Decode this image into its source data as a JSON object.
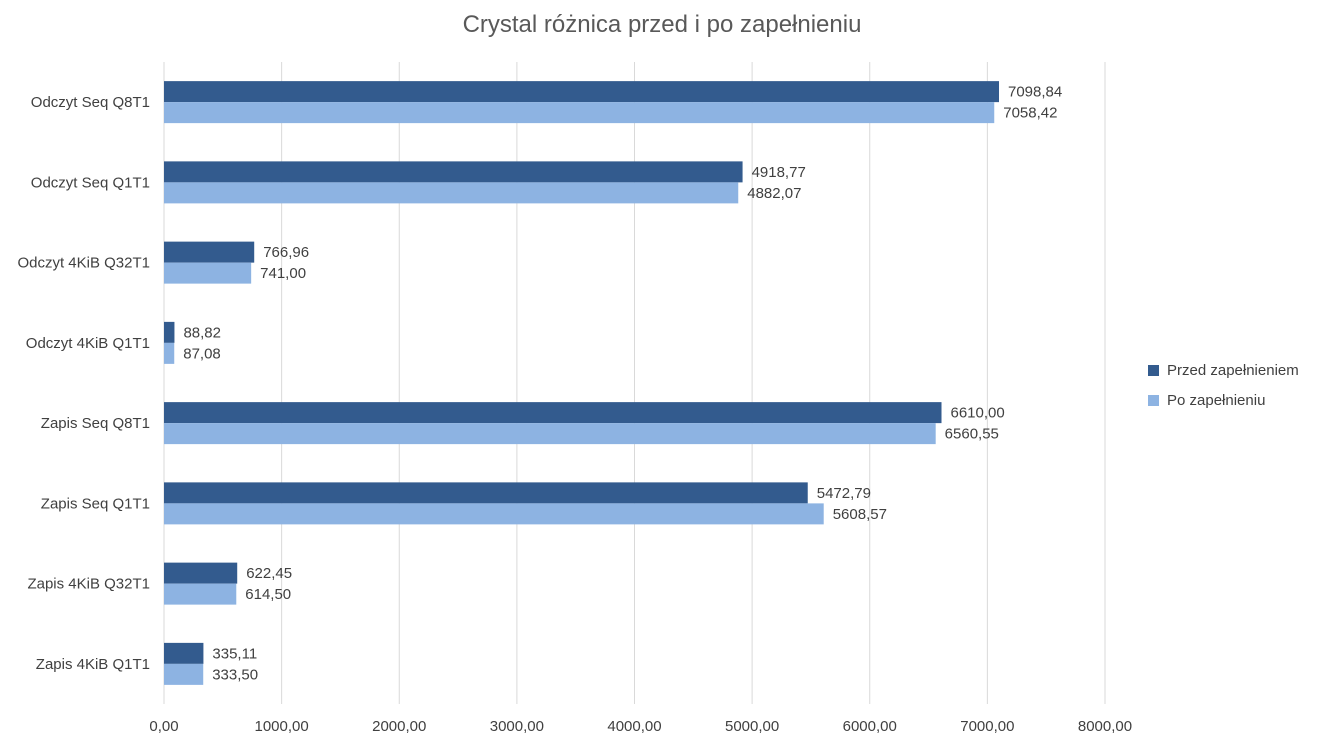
{
  "chart_data": {
    "type": "bar",
    "orientation": "horizontal",
    "title": "Crystal różnica przed i po zapełnieniu",
    "xlabel": "",
    "ylabel": "",
    "xlim": [
      0,
      8000
    ],
    "grid": true,
    "legend_position": "right",
    "categories": [
      "Odczyt Seq Q8T1",
      "Odczyt Seq Q1T1",
      "Odczyt 4KiB Q32T1",
      "Odczyt 4KiB Q1T1",
      "Zapis Seq Q8T1",
      "Zapis Seq Q1T1",
      "Zapis 4KiB Q32T1",
      "Zapis 4KiB Q1T1"
    ],
    "x_ticks": [
      "0,00",
      "1000,00",
      "2000,00",
      "3000,00",
      "4000,00",
      "5000,00",
      "6000,00",
      "7000,00",
      "8000,00"
    ],
    "x_tick_values": [
      0,
      1000,
      2000,
      3000,
      4000,
      5000,
      6000,
      7000,
      8000
    ],
    "series": [
      {
        "name": "Przed zapełnieniem",
        "color": "#335b8e",
        "values": [
          7098.84,
          4918.77,
          766.96,
          88.82,
          6610.0,
          5472.79,
          622.45,
          335.11
        ],
        "labels": [
          "7098,84",
          "4918,77",
          "766,96",
          "88,82",
          "6610,00",
          "5472,79",
          "622,45",
          "335,11"
        ]
      },
      {
        "name": "Po zapełnieniu",
        "color": "#8db3e2",
        "values": [
          7058.42,
          4882.07,
          741.0,
          87.08,
          6560.55,
          5608.57,
          614.5,
          333.5
        ],
        "labels": [
          "7058,42",
          "4882,07",
          "741,00",
          "87,08",
          "6560,55",
          "5608,57",
          "614,50",
          "333,50"
        ]
      }
    ],
    "gridline_color": "#d9d9d9"
  }
}
